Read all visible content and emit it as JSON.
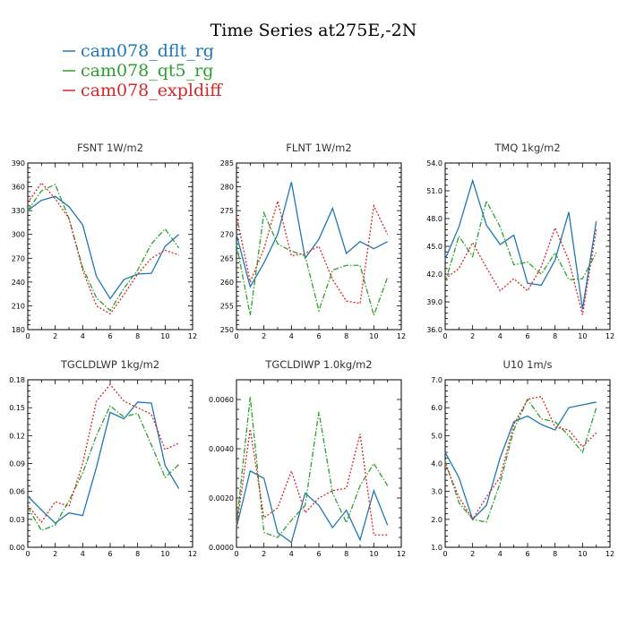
{
  "figure": {
    "title": "Time Series at275E,-2N"
  },
  "legend": [
    {
      "label": "cam078_dflt_rg",
      "color": "#1f77b4",
      "dash": "solid"
    },
    {
      "label": "cam078_qt5_rg",
      "color": "#2ca02c",
      "dash": "dashdot"
    },
    {
      "label": "cam078_expldiff",
      "color": "#d62728",
      "dash": "dotted"
    }
  ],
  "chart_data": [
    {
      "type": "line",
      "title": "FSNT   1W/m2",
      "x": [
        0,
        1,
        2,
        3,
        4,
        5,
        6,
        7,
        8,
        9,
        10,
        11
      ],
      "xlim": [
        0,
        12
      ],
      "xticks": [
        0,
        2,
        4,
        6,
        8,
        10,
        12
      ],
      "ylim": [
        180,
        390
      ],
      "yticks": [
        "180",
        "210",
        "240",
        "270",
        "300",
        "330",
        "360",
        "390"
      ],
      "series": [
        {
          "values": [
            330,
            343,
            348,
            335,
            312,
            247,
            219,
            243,
            250,
            251,
            285,
            300
          ]
        },
        {
          "values": [
            330,
            355,
            363,
            320,
            258,
            220,
            204,
            232,
            255,
            288,
            307,
            283
          ]
        },
        {
          "values": [
            340,
            365,
            345,
            320,
            255,
            210,
            200,
            224,
            250,
            270,
            280,
            274
          ]
        }
      ]
    },
    {
      "type": "line",
      "title": "FLNT   1W/m2",
      "x": [
        0,
        1,
        2,
        3,
        4,
        5,
        6,
        7,
        8,
        9,
        10,
        11
      ],
      "xlim": [
        0,
        12
      ],
      "xticks": [
        0,
        2,
        4,
        6,
        8,
        10,
        12
      ],
      "ylim": [
        250,
        285
      ],
      "yticks": [
        "250",
        "255",
        "260",
        "265",
        "270",
        "275",
        "280",
        "285"
      ],
      "series": [
        {
          "values": [
            270,
            259,
            264,
            270,
            281,
            265,
            269,
            275.5,
            266,
            268.5,
            267,
            268.5
          ]
        },
        {
          "values": [
            268,
            253,
            274.5,
            268,
            266.5,
            265.5,
            254,
            262.5,
            263.5,
            263.5,
            253,
            261
          ]
        },
        {
          "values": [
            274,
            260,
            267,
            277,
            265.5,
            266,
            267.5,
            260.5,
            256,
            255.5,
            276,
            270
          ]
        }
      ]
    },
    {
      "type": "line",
      "title": "TMQ   1kg/m2",
      "x": [
        0,
        1,
        2,
        3,
        4,
        5,
        6,
        7,
        8,
        9,
        10,
        11
      ],
      "xlim": [
        0,
        12
      ],
      "xticks": [
        0,
        2,
        4,
        6,
        8,
        10,
        12
      ],
      "ylim": [
        36,
        54
      ],
      "yticks": [
        "36.0",
        "39.0",
        "42.0",
        "45.0",
        "48.0",
        "51.0",
        "54.0"
      ],
      "series": [
        {
          "values": [
            43.6,
            47.1,
            52.1,
            47.3,
            45.2,
            46.2,
            41,
            40.8,
            43.5,
            48.7,
            38.2,
            47.7
          ]
        },
        {
          "values": [
            41.1,
            46.1,
            43.9,
            49.9,
            47.1,
            43,
            43.3,
            42,
            44.3,
            41.4,
            41.5,
            44.3
          ]
        },
        {
          "values": [
            41.5,
            42.6,
            45.4,
            42.7,
            40.2,
            41.5,
            40.2,
            42.8,
            47,
            43.5,
            37.6,
            46.8
          ]
        }
      ]
    },
    {
      "type": "line",
      "title": "TGCLDLWP   1kg/m2",
      "x": [
        0,
        1,
        2,
        3,
        4,
        5,
        6,
        7,
        8,
        9,
        10,
        11
      ],
      "xlim": [
        0,
        12
      ],
      "xticks": [
        0,
        2,
        4,
        6,
        8,
        10,
        12
      ],
      "ylim": [
        0,
        0.18
      ],
      "yticks": [
        "0.00",
        "0.03",
        "0.06",
        "0.09",
        "0.12",
        "0.15",
        "0.18"
      ],
      "series": [
        {
          "values": [
            0.055,
            0.04,
            0.026,
            0.037,
            0.034,
            0.086,
            0.145,
            0.138,
            0.156,
            0.155,
            0.088,
            0.063
          ]
        },
        {
          "values": [
            0.043,
            0.018,
            0.024,
            0.05,
            0.08,
            0.12,
            0.152,
            0.14,
            0.144,
            0.11,
            0.075,
            0.089
          ]
        },
        {
          "values": [
            0.045,
            0.027,
            0.049,
            0.044,
            0.09,
            0.157,
            0.175,
            0.157,
            0.15,
            0.143,
            0.105,
            0.112
          ]
        }
      ]
    },
    {
      "type": "line",
      "title": "TGCLDIWP   1.0kg/m2",
      "x": [
        0,
        1,
        2,
        3,
        4,
        5,
        6,
        7,
        8,
        9,
        10,
        11
      ],
      "xlim": [
        0,
        12
      ],
      "xticks": [
        0,
        2,
        4,
        6,
        8,
        10,
        12
      ],
      "ylim": [
        0,
        0.0068
      ],
      "yticks": [
        "0.0000",
        "0.0020",
        "0.0040",
        "0.0060"
      ],
      "ytick_values": [
        0,
        0.002,
        0.004,
        0.006
      ],
      "series": [
        {
          "values": [
            0.0008,
            0.0031,
            0.0028,
            0.0006,
            0.0002,
            0.0022,
            0.0017,
            0.0008,
            0.0015,
            0.0003,
            0.0023,
            0.0009
          ]
        },
        {
          "values": [
            0.0009,
            0.0061,
            0.0006,
            0.0004,
            0.0011,
            0.0017,
            0.0055,
            0.0022,
            0.001,
            0.0025,
            0.0034,
            0.0025
          ]
        },
        {
          "values": [
            0.0008,
            0.0048,
            0.0012,
            0.0016,
            0.0031,
            0.0014,
            0.002,
            0.0023,
            0.0024,
            0.0046,
            0.0005,
            0.0005
          ]
        }
      ]
    },
    {
      "type": "line",
      "title": "U10   1m/s",
      "x": [
        0,
        1,
        2,
        3,
        4,
        5,
        6,
        7,
        8,
        9,
        10,
        11
      ],
      "xlim": [
        0,
        12
      ],
      "xticks": [
        0,
        2,
        4,
        6,
        8,
        10,
        12
      ],
      "ylim": [
        1,
        7
      ],
      "yticks": [
        "1.0",
        "2.0",
        "3.0",
        "4.0",
        "5.0",
        "6.0",
        "7.0"
      ],
      "series": [
        {
          "values": [
            4.4,
            3.5,
            2,
            2.5,
            4.2,
            5.5,
            5.7,
            5.4,
            5.2,
            6,
            6.1,
            6.2
          ]
        },
        {
          "values": [
            4.1,
            2.6,
            2,
            1.9,
            3.3,
            5.2,
            6.3,
            5.6,
            5.5,
            5,
            4.4,
            6
          ]
        },
        {
          "values": [
            4,
            2.8,
            2,
            2.8,
            3.5,
            5.4,
            6.3,
            6.4,
            5.3,
            5.2,
            4.6,
            5.1
          ]
        }
      ]
    }
  ]
}
